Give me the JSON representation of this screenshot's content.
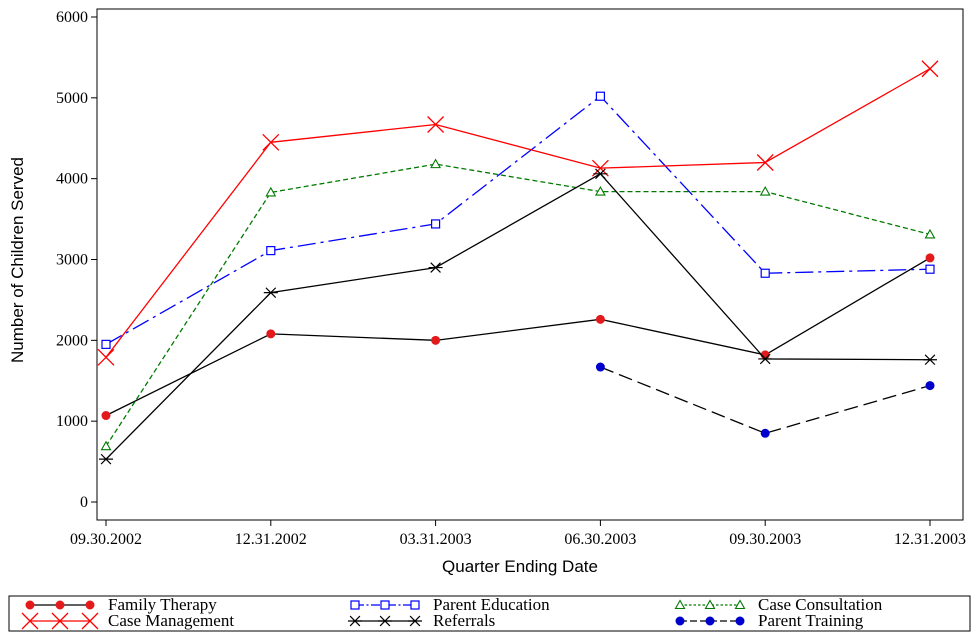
{
  "chart_data": {
    "type": "line",
    "xlabel": "Quarter Ending Date",
    "ylabel": "Number of Children Served",
    "categories": [
      "09.30.2002",
      "12.31.2002",
      "03.31.2003",
      "06.30.2003",
      "09.30.2003",
      "12.31.2003"
    ],
    "ylim": [
      0,
      6000
    ],
    "yticks": [
      0,
      1000,
      2000,
      3000,
      4000,
      5000,
      6000
    ],
    "grid": false,
    "legend_position": "bottom",
    "series": [
      {
        "name": "Family Therapy",
        "values": [
          1070,
          2080,
          2000,
          2260,
          1820,
          3020
        ],
        "color": "#000000",
        "marker_color": "#e31a1c",
        "marker": "dot",
        "dash": ""
      },
      {
        "name": "Parent Education",
        "values": [
          1950,
          3110,
          3440,
          5020,
          2830,
          2880
        ],
        "color": "#0000ff",
        "marker_color": "#0000ff",
        "marker": "square",
        "dash": "18,5,3,5"
      },
      {
        "name": "Case Consultation",
        "values": [
          690,
          3830,
          4180,
          3840,
          3840,
          3310
        ],
        "color": "#007a00",
        "marker_color": "#007a00",
        "marker": "triangle",
        "dash": "5,3"
      },
      {
        "name": "Case Management",
        "values": [
          1790,
          4450,
          4670,
          4130,
          4200,
          5360
        ],
        "color": "#ff0000",
        "marker_color": "#ff0000",
        "marker": "x",
        "dash": ""
      },
      {
        "name": "Referrals",
        "values": [
          530,
          2590,
          2900,
          4060,
          1770,
          1760
        ],
        "color": "#000000",
        "marker_color": "#000000",
        "marker": "star",
        "dash": ""
      },
      {
        "name": "Parent Training",
        "values": [
          null,
          null,
          null,
          1670,
          850,
          1440
        ],
        "color": "#000000",
        "marker_color": "#0000cc",
        "marker": "dot",
        "dash": "14,6"
      }
    ]
  }
}
